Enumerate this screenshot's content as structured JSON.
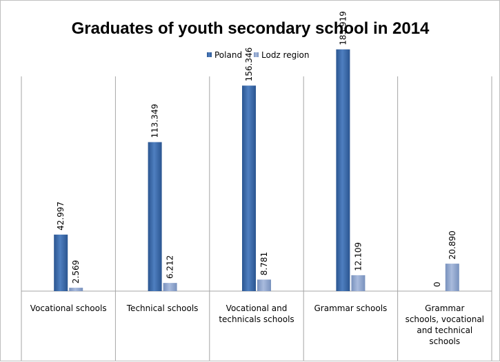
{
  "chart_data": {
    "type": "bar",
    "title": "Graduates of youth secondary school in 2014",
    "xlabel": "",
    "ylabel": "",
    "categories": [
      [
        "Vocational schools"
      ],
      [
        "Technical schools"
      ],
      [
        "Vocational and",
        "technicals schools"
      ],
      [
        "Grammar schools"
      ],
      [
        "Grammar",
        "schools, vocational",
        "and technical",
        "schools"
      ]
    ],
    "series": [
      {
        "name": "Poland",
        "values": [
          42997,
          113349,
          156346,
          183919,
          0
        ],
        "labels": [
          "42.997",
          "113.349",
          "156.346",
          "183.919",
          "0"
        ],
        "color": "#3b6aa3"
      },
      {
        "name": "Lodz region",
        "values": [
          2569,
          6212,
          8781,
          12109,
          20890
        ],
        "labels": [
          "2.569",
          "6.212",
          "8.781",
          "12.109",
          "20.890"
        ],
        "color": "#8aa2cc"
      }
    ],
    "ylim": [
      0,
      200000
    ],
    "grid": false,
    "legend_position": "top"
  }
}
